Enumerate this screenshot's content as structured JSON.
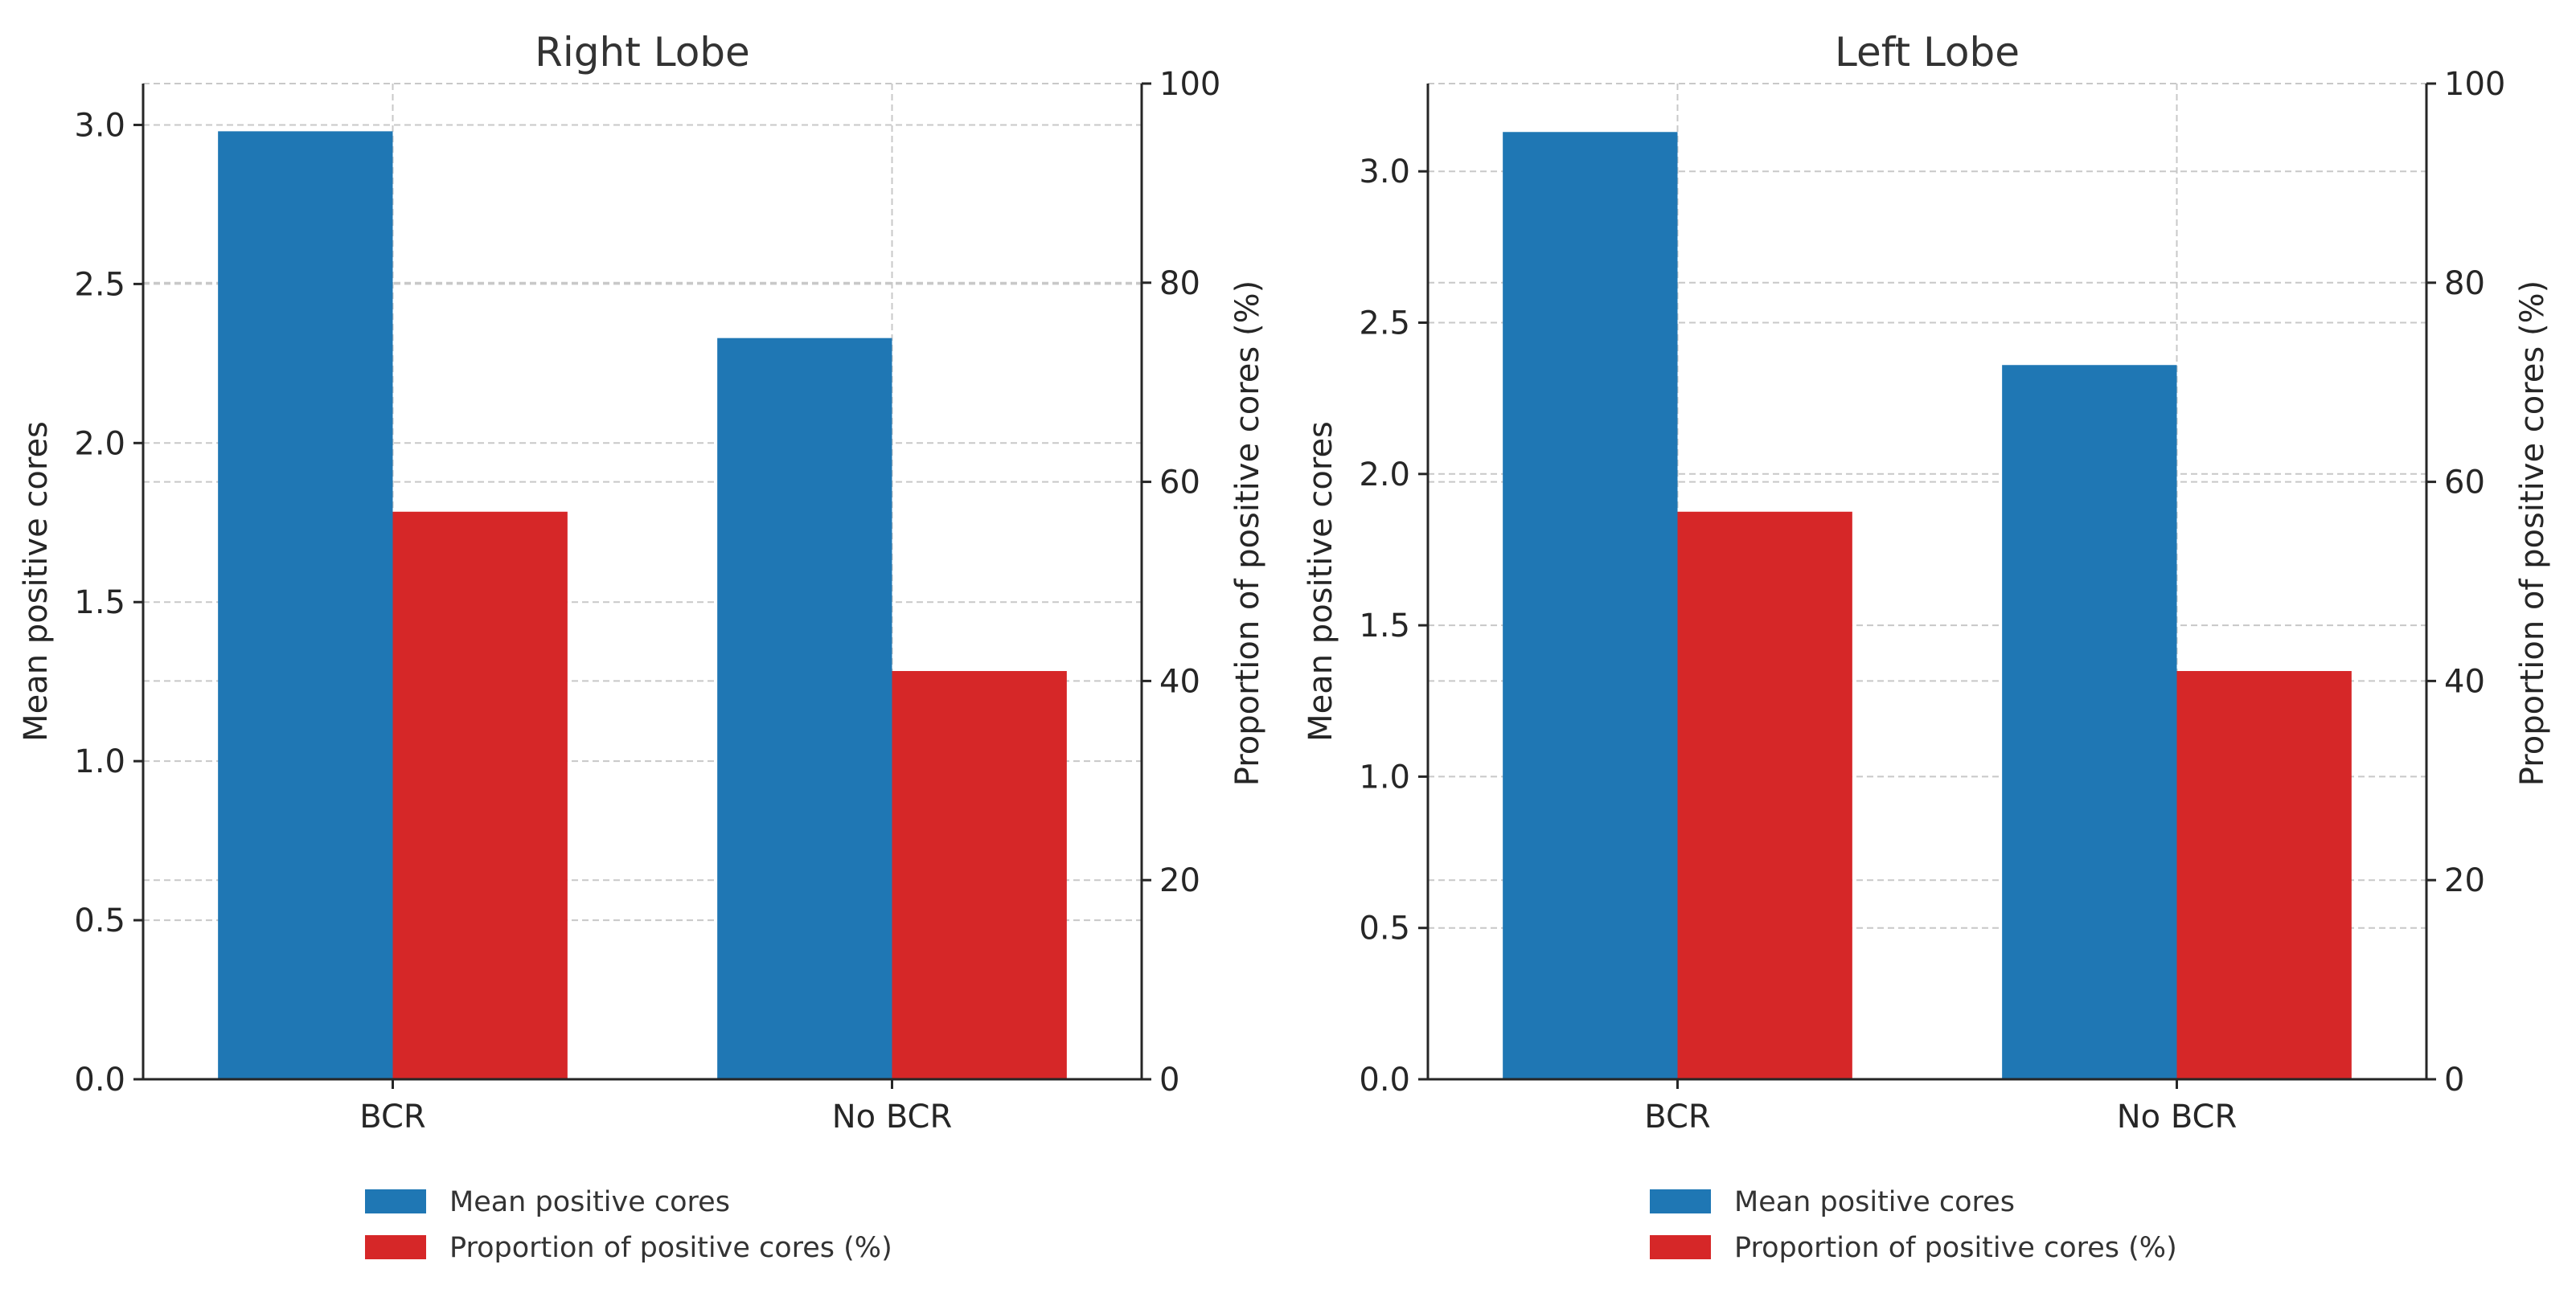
{
  "colors": {
    "primary_series": "#1f77b4",
    "secondary_series": "#d62728"
  },
  "chart_data": [
    {
      "type": "bar",
      "title": "Right Lobe",
      "categories": [
        "BCR",
        "No BCR"
      ],
      "series": [
        {
          "name": "Mean positive cores",
          "axis": "left",
          "values": [
            2.98,
            2.33
          ]
        },
        {
          "name": "Proportion of positive cores (%)",
          "axis": "right",
          "values": [
            57,
            41
          ]
        }
      ],
      "ylabel": "Mean positive cores",
      "ylabel_right": "Proportion of positive cores (%)",
      "ylim": [
        0,
        3.13
      ],
      "ylim_right": [
        0,
        100
      ],
      "yticks": [
        "0.0",
        "0.5",
        "1.0",
        "1.5",
        "2.0",
        "2.5",
        "3.0"
      ],
      "yticks_right": [
        "0",
        "20",
        "40",
        "60",
        "80",
        "100"
      ],
      "grid": true,
      "legend": "bottom-center"
    },
    {
      "type": "bar",
      "title": "Left Lobe",
      "categories": [
        "BCR",
        "No BCR"
      ],
      "series": [
        {
          "name": "Mean positive cores",
          "axis": "left",
          "values": [
            3.13,
            2.36
          ]
        },
        {
          "name": "Proportion of positive cores (%)",
          "axis": "right",
          "values": [
            57,
            41
          ]
        }
      ],
      "ylabel": "Mean positive cores",
      "ylabel_right": "Proportion of positive cores (%)",
      "ylim": [
        0,
        3.29
      ],
      "ylim_right": [
        0,
        100
      ],
      "yticks": [
        "0.0",
        "0.5",
        "1.0",
        "1.5",
        "2.0",
        "2.5",
        "3.0"
      ],
      "yticks_right": [
        "0",
        "20",
        "40",
        "60",
        "80",
        "100"
      ],
      "grid": true,
      "legend": "bottom-center"
    }
  ]
}
